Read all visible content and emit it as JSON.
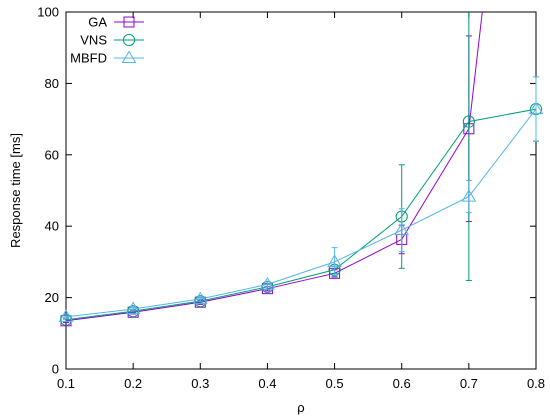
{
  "chart_data": {
    "type": "line",
    "title": "",
    "xlabel": "ρ",
    "ylabel": "Response time [ms]",
    "xlim": [
      0.1,
      0.8
    ],
    "ylim": [
      0,
      100
    ],
    "x_ticks": [
      "0.1",
      "0.2",
      "0.3",
      "0.4",
      "0.5",
      "0.6",
      "0.7",
      "0.8"
    ],
    "y_ticks": [
      "0",
      "20",
      "40",
      "60",
      "80",
      "100"
    ],
    "grid": false,
    "legend_position": "top-left",
    "series": [
      {
        "name": "GA",
        "color": "#9400d3",
        "marker": "square",
        "points": [
          {
            "x": 0.1,
            "y": 13.5,
            "err": 0.5
          },
          {
            "x": 0.2,
            "y": 15.9,
            "err": 0.5
          },
          {
            "x": 0.3,
            "y": 18.7,
            "err": 0.6
          },
          {
            "x": 0.4,
            "y": 22.5,
            "err": 0.6
          },
          {
            "x": 0.5,
            "y": 26.8,
            "err": 1.0
          },
          {
            "x": 0.6,
            "y": 36.3,
            "err": 4.0
          },
          {
            "x": 0.7,
            "y": 67.3,
            "err": 26.0
          },
          {
            "x": 0.72,
            "y": 100
          }
        ]
      },
      {
        "name": "VNS",
        "color": "#009e73",
        "marker": "circle",
        "points": [
          {
            "x": 0.1,
            "y": 13.8,
            "err": 0.5
          },
          {
            "x": 0.2,
            "y": 16.2,
            "err": 0.5
          },
          {
            "x": 0.3,
            "y": 19.0,
            "err": 0.6
          },
          {
            "x": 0.4,
            "y": 23.0,
            "err": 0.7
          },
          {
            "x": 0.5,
            "y": 27.8,
            "err": 1.0
          },
          {
            "x": 0.6,
            "y": 42.7,
            "err": 14.5
          },
          {
            "x": 0.7,
            "y": 69.3,
            "err": 44.5
          },
          {
            "x": 0.8,
            "y": 72.8,
            "err": 9.0
          }
        ]
      },
      {
        "name": "MBFD",
        "color": "#56b4e9",
        "marker": "triangle",
        "points": [
          {
            "x": 0.1,
            "y": 14.6,
            "err": 0.5
          },
          {
            "x": 0.2,
            "y": 16.8,
            "err": 0.5
          },
          {
            "x": 0.3,
            "y": 19.6,
            "err": 0.6
          },
          {
            "x": 0.4,
            "y": 23.7,
            "err": 0.7
          },
          {
            "x": 0.5,
            "y": 30.0,
            "err": 4.0
          },
          {
            "x": 0.6,
            "y": 38.9,
            "err": 6.0
          },
          {
            "x": 0.7,
            "y": 48.3,
            "err": 4.5
          },
          {
            "x": 0.8,
            "y": 72.8,
            "err": 9.0
          }
        ]
      }
    ]
  }
}
